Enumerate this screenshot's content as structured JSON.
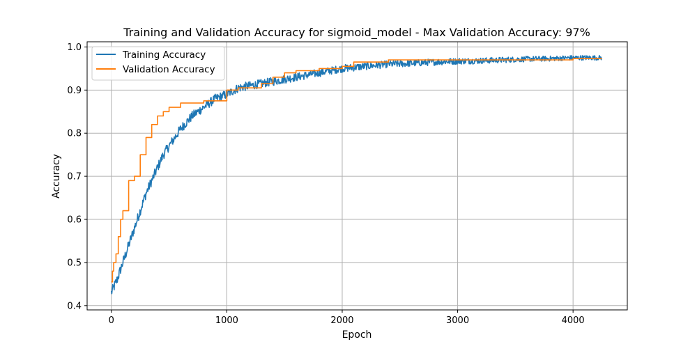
{
  "chart_data": {
    "type": "line",
    "title": "Training and Validation Accuracy for sigmoid_model - Max Validation Accuracy: 97%",
    "xlabel": "Epoch",
    "ylabel": "Accuracy",
    "xlim": [
      -210,
      4470
    ],
    "ylim": [
      0.39,
      1.012
    ],
    "xticks": [
      0,
      1000,
      2000,
      3000,
      4000
    ],
    "xtick_labels": [
      "0",
      "1000",
      "2000",
      "3000",
      "4000"
    ],
    "yticks": [
      0.4,
      0.5,
      0.6,
      0.7,
      0.8,
      0.9,
      1.0
    ],
    "ytick_labels": [
      "0.4",
      "0.5",
      "0.6",
      "0.7",
      "0.8",
      "0.9",
      "1.0"
    ],
    "grid": true,
    "legend_position": "upper-left",
    "series": [
      {
        "name": "Training Accuracy",
        "color": "#1f77b4",
        "style": "noisy",
        "noise": 0.012,
        "x": [
          0,
          50,
          100,
          150,
          200,
          250,
          300,
          350,
          400,
          450,
          500,
          600,
          700,
          800,
          900,
          1000,
          1100,
          1200,
          1300,
          1400,
          1500,
          1600,
          1700,
          1800,
          1900,
          2000,
          2200,
          2400,
          2600,
          2800,
          3000,
          3200,
          3400,
          3600,
          3800,
          4000,
          4100,
          4250
        ],
        "values": [
          0.43,
          0.46,
          0.5,
          0.54,
          0.58,
          0.62,
          0.66,
          0.69,
          0.72,
          0.75,
          0.77,
          0.81,
          0.84,
          0.86,
          0.88,
          0.89,
          0.905,
          0.91,
          0.915,
          0.92,
          0.925,
          0.93,
          0.935,
          0.94,
          0.945,
          0.95,
          0.955,
          0.96,
          0.962,
          0.965,
          0.967,
          0.968,
          0.97,
          0.972,
          0.973,
          0.975,
          0.975,
          0.975
        ]
      },
      {
        "name": "Validation Accuracy",
        "color": "#ff7f0e",
        "style": "step",
        "x": [
          0,
          10,
          20,
          40,
          60,
          80,
          100,
          150,
          200,
          250,
          300,
          350,
          400,
          450,
          500,
          600,
          800,
          1000,
          1100,
          1300,
          1400,
          1500,
          1600,
          1800,
          2000,
          2100,
          2400,
          3000,
          3500,
          4000,
          4250
        ],
        "values": [
          0.455,
          0.48,
          0.5,
          0.52,
          0.56,
          0.6,
          0.62,
          0.69,
          0.7,
          0.75,
          0.79,
          0.82,
          0.84,
          0.85,
          0.86,
          0.87,
          0.875,
          0.9,
          0.905,
          0.915,
          0.93,
          0.94,
          0.945,
          0.95,
          0.955,
          0.965,
          0.97,
          0.97,
          0.97,
          0.973,
          0.973
        ]
      }
    ]
  }
}
